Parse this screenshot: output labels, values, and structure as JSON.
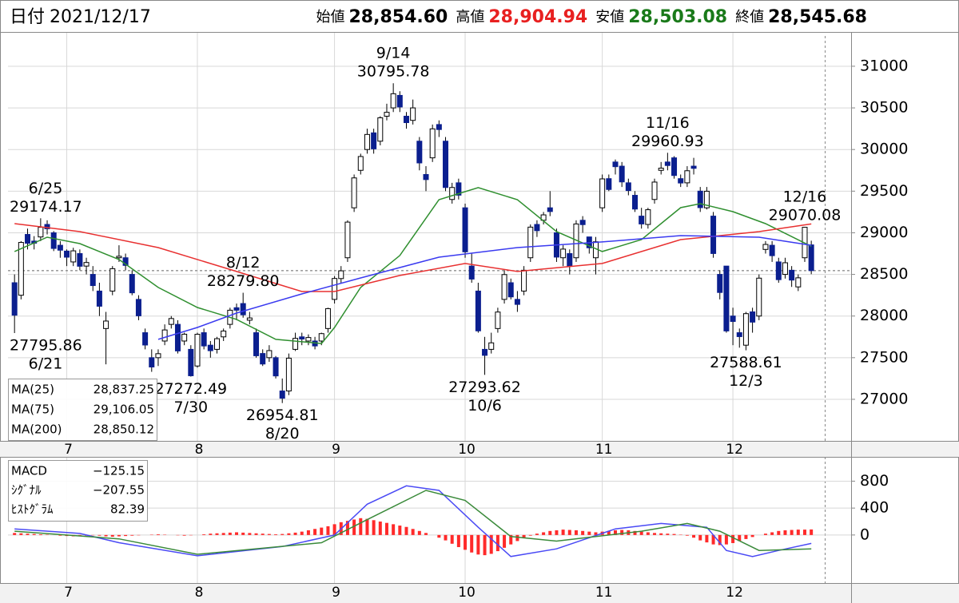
{
  "header": {
    "date_label": "日付",
    "date": "2021/12/17",
    "items": [
      {
        "label": "始値",
        "value": "28,854.60",
        "color": "#000000"
      },
      {
        "label": "高値",
        "value": "28,904.94",
        "color": "#e82020"
      },
      {
        "label": "安値",
        "value": "28,503.08",
        "color": "#1a7a1a"
      },
      {
        "label": "終値",
        "value": "28,545.68",
        "color": "#000000"
      }
    ]
  },
  "chart_data": {
    "type": "candlestick",
    "xlim": [
      -1,
      128.1
    ],
    "xticks": [
      {
        "value": 8,
        "label": "7"
      },
      {
        "value": 28,
        "label": "8"
      },
      {
        "value": 49,
        "label": "9"
      },
      {
        "value": 69,
        "label": "10"
      },
      {
        "value": 90,
        "label": "11"
      },
      {
        "value": 110,
        "label": "12"
      }
    ],
    "ylim": [
      26520,
      31364
    ],
    "yticks": [
      27000,
      27500,
      28000,
      28500,
      29000,
      29500,
      30000,
      30500,
      31000
    ],
    "grid": true,
    "up_color": "#ffffff",
    "down_color": "#0b1f8f",
    "candles": [
      [
        28400,
        28500,
        27795.86,
        28010
      ],
      [
        28250,
        28900,
        28200,
        28884
      ],
      [
        28980,
        29050,
        28800,
        28874
      ],
      [
        28900,
        28960,
        28800,
        28875
      ],
      [
        28950,
        29174.17,
        28900,
        29066
      ],
      [
        29100,
        29150,
        28980,
        29048
      ],
      [
        29000,
        29020,
        28780,
        28812
      ],
      [
        28850,
        28900,
        28700,
        28791
      ],
      [
        28780,
        28800,
        28600,
        28707
      ],
      [
        28650,
        28820,
        28600,
        28783
      ],
      [
        28750,
        28800,
        28550,
        28598
      ],
      [
        28600,
        28700,
        28500,
        28643
      ],
      [
        28500,
        28600,
        28300,
        28366
      ],
      [
        28300,
        28400,
        28000,
        28118
      ],
      [
        27850,
        28050,
        27420,
        27940
      ],
      [
        28300,
        28600,
        28250,
        28569
      ],
      [
        28700,
        28850,
        28650,
        28718
      ],
      [
        28700,
        28750,
        28550,
        28608
      ],
      [
        28500,
        28550,
        28250,
        28279
      ],
      [
        28200,
        28250,
        27950,
        28003
      ],
      [
        27800,
        27850,
        27600,
        27652
      ],
      [
        27500,
        27600,
        27330,
        27388
      ],
      [
        27500,
        27600,
        27400,
        27548
      ],
      [
        27700,
        27900,
        27650,
        27833
      ],
      [
        27900,
        28000,
        27850,
        27970
      ],
      [
        27900,
        27950,
        27550,
        27581
      ],
      [
        27700,
        27800,
        27650,
        27782
      ],
      [
        27600,
        27650,
        27272.49,
        27283
      ],
      [
        27400,
        27800,
        27380,
        27781
      ],
      [
        27800,
        27850,
        27600,
        27641
      ],
      [
        27650,
        27700,
        27500,
        27584
      ],
      [
        27600,
        27750,
        27550,
        27728
      ],
      [
        27750,
        27850,
        27700,
        27820
      ],
      [
        27900,
        28100,
        27850,
        28070
      ],
      [
        28100,
        28150,
        27950,
        28070
      ],
      [
        28150,
        28279.8,
        27980,
        28015
      ],
      [
        27950,
        28050,
        27900,
        27977
      ],
      [
        27800,
        27850,
        27500,
        27523
      ],
      [
        27550,
        27600,
        27400,
        27424
      ],
      [
        27500,
        27650,
        27450,
        27585
      ],
      [
        27500,
        27520,
        27250,
        27281
      ],
      [
        27100,
        27250,
        26954.81,
        27013
      ],
      [
        27100,
        27550,
        27050,
        27494
      ],
      [
        27600,
        27800,
        27580,
        27732
      ],
      [
        27750,
        27800,
        27650,
        27724
      ],
      [
        27700,
        27780,
        27650,
        27742
      ],
      [
        27700,
        27750,
        27600,
        27641
      ],
      [
        27700,
        27800,
        27650,
        27789
      ],
      [
        27850,
        28100,
        27800,
        28089
      ],
      [
        28200,
        28480,
        28150,
        28451
      ],
      [
        28450,
        28600,
        28400,
        28543
      ],
      [
        28700,
        29150,
        28650,
        29128
      ],
      [
        29300,
        29700,
        29250,
        29659
      ],
      [
        29750,
        29950,
        29700,
        29916
      ],
      [
        30000,
        30250,
        29950,
        30181
      ],
      [
        30200,
        30250,
        29950,
        30008
      ],
      [
        30100,
        30400,
        30050,
        30381
      ],
      [
        30400,
        30550,
        30350,
        30447
      ],
      [
        30500,
        30795.78,
        30450,
        30670
      ],
      [
        30650,
        30700,
        30450,
        30511
      ],
      [
        30400,
        30450,
        30250,
        30323
      ],
      [
        30350,
        30600,
        30300,
        30500
      ],
      [
        30100,
        30150,
        29750,
        29839
      ],
      [
        29700,
        29800,
        29500,
        29639
      ],
      [
        29900,
        30300,
        29850,
        30248
      ],
      [
        30300,
        30350,
        30150,
        30240
      ],
      [
        30100,
        30150,
        29500,
        29544
      ],
      [
        29400,
        29600,
        29350,
        29544
      ],
      [
        29600,
        29650,
        29400,
        29452
      ],
      [
        29300,
        29350,
        28700,
        28771
      ],
      [
        28600,
        28750,
        28400,
        28444
      ],
      [
        28300,
        28400,
        27800,
        27822
      ],
      [
        27600,
        27750,
        27293.62,
        27528
      ],
      [
        27600,
        27800,
        27550,
        27678
      ],
      [
        27850,
        28100,
        27800,
        28048
      ],
      [
        28200,
        28550,
        28150,
        28498
      ],
      [
        28400,
        28450,
        28200,
        28230
      ],
      [
        28200,
        28300,
        28050,
        28140
      ],
      [
        28300,
        28600,
        28250,
        28550
      ],
      [
        28700,
        29100,
        28650,
        29068
      ],
      [
        29100,
        29150,
        28950,
        29025
      ],
      [
        29150,
        29250,
        29100,
        29215
      ],
      [
        29300,
        29500,
        29200,
        29255
      ],
      [
        29000,
        29050,
        28650,
        28708
      ],
      [
        28700,
        28850,
        28600,
        28804
      ],
      [
        28750,
        28800,
        28500,
        28600
      ],
      [
        28700,
        29150,
        28650,
        29106
      ],
      [
        29150,
        29200,
        29000,
        29098
      ],
      [
        28950,
        28950,
        28750,
        28820
      ],
      [
        28700,
        28950,
        28500,
        28892
      ],
      [
        29300,
        29700,
        29250,
        29647
      ],
      [
        29650,
        29700,
        29500,
        29520
      ],
      [
        29850,
        29880,
        29700,
        29794
      ],
      [
        29800,
        29850,
        29550,
        29611
      ],
      [
        29600,
        29650,
        29450,
        29507
      ],
      [
        29450,
        29500,
        29250,
        29285
      ],
      [
        29200,
        29300,
        29050,
        29106
      ],
      [
        29100,
        29300,
        29050,
        29277
      ],
      [
        29400,
        29650,
        29350,
        29609
      ],
      [
        29750,
        29850,
        29700,
        29776
      ],
      [
        29850,
        29960.93,
        29750,
        29808
      ],
      [
        29900,
        29920,
        29650,
        29688
      ],
      [
        29650,
        29700,
        29550,
        29598
      ],
      [
        29600,
        29800,
        29550,
        29745
      ],
      [
        29800,
        29900,
        29700,
        29774
      ],
      [
        29500,
        29550,
        29250,
        29302
      ],
      [
        29300,
        29550,
        29280,
        29499
      ],
      [
        29200,
        29250,
        28700,
        28751
      ],
      [
        28500,
        28550,
        28200,
        28283
      ],
      [
        28600,
        28600,
        27800,
        27821
      ],
      [
        28000,
        28100,
        27650,
        27935
      ],
      [
        27800,
        27850,
        27620,
        27753
      ],
      [
        27650,
        28050,
        27588.61,
        28029
      ],
      [
        28050,
        28100,
        27800,
        27927
      ],
      [
        28000,
        28500,
        27950,
        28455
      ],
      [
        28800,
        28900,
        28750,
        28860
      ],
      [
        28850,
        28900,
        28650,
        28725
      ],
      [
        28650,
        28700,
        28400,
        28437
      ],
      [
        28500,
        28700,
        28450,
        28640
      ],
      [
        28550,
        28600,
        28350,
        28432
      ],
      [
        28350,
        28500,
        28300,
        28459
      ],
      [
        28700,
        29070.08,
        28650,
        29066
      ],
      [
        28854.6,
        28904.94,
        28503.08,
        28545.68
      ]
    ],
    "moving_averages": [
      {
        "name": "MA(25)",
        "color": "#2f8f2f",
        "last_label": "28,837.25",
        "x": [
          0,
          5,
          10,
          16,
          22,
          28,
          34,
          40,
          47,
          49,
          53,
          59,
          65,
          71,
          77,
          83,
          90,
          96,
          102,
          105,
          110,
          115,
          122
        ],
        "values": [
          28775,
          28947,
          28870,
          28679,
          28343,
          28103,
          27960,
          27720,
          27670,
          27863,
          28343,
          28727,
          29398,
          29542,
          29398,
          29014,
          28775,
          28918,
          29302,
          29350,
          29254,
          29110,
          28837.25
        ]
      },
      {
        "name": "MA(75)",
        "color": "#e83030",
        "last_label": "29,106.05",
        "x": [
          0,
          10,
          22,
          34,
          44,
          49,
          59,
          69,
          77,
          90,
          102,
          114,
          122
        ],
        "values": [
          29110,
          29014,
          28822,
          28535,
          28295,
          28295,
          28487,
          28631,
          28535,
          28631,
          28918,
          29014,
          29106.05
        ]
      },
      {
        "name": "MA(200)",
        "color": "#3a3af0",
        "last_label": "28,850.12",
        "x": [
          22,
          28,
          34,
          44,
          53,
          65,
          77,
          90,
          102,
          114,
          122
        ],
        "values": [
          27720,
          27863,
          28036,
          28266,
          28458,
          28707,
          28822,
          28890,
          28966,
          28947,
          28850.12
        ]
      }
    ],
    "annotations": [
      {
        "date": "6/25",
        "x": 4,
        "value": 29174.17,
        "label": "29174.17"
      },
      {
        "date": "6/21",
        "x": 0,
        "value": 27795.86,
        "label": "27795.86"
      },
      {
        "date": "7/30",
        "x": 27,
        "value": 27272.49,
        "label": "27272.49"
      },
      {
        "date": "8/12",
        "x": 35,
        "value": 28279.8,
        "label": "28279.80"
      },
      {
        "date": "8/20",
        "x": 41,
        "value": 26954.81,
        "label": "26954.81"
      },
      {
        "date": "9/14",
        "x": 58,
        "value": 30795.78,
        "label": "30795.78"
      },
      {
        "date": "10/6",
        "x": 72,
        "value": 27293.62,
        "label": "27293.62"
      },
      {
        "date": "11/16",
        "x": 100,
        "value": 29960.93,
        "label": "29960.93"
      },
      {
        "date": "12/3",
        "x": 112,
        "value": 27588.61,
        "label": "27588.61"
      },
      {
        "date": "12/16",
        "x": 121,
        "value": 29070.08,
        "label": "29070.08"
      }
    ],
    "macd": {
      "ylim": [
        -690,
        1090
      ],
      "yticks": [
        0,
        400,
        800
      ],
      "series": [
        {
          "name": "MACD",
          "color": "#4a4af5",
          "last_label": "−125.15",
          "x": [
            0,
            10,
            16,
            28,
            41,
            49,
            54,
            60,
            65,
            71,
            76,
            83,
            92,
            99,
            106,
            109,
            113,
            117,
            122
          ],
          "values": [
            91,
            23,
            -114,
            -309,
            -171,
            0,
            457,
            731,
            663,
            114,
            -320,
            -206,
            91,
            171,
            114,
            -229,
            -320,
            -229,
            -125.15
          ]
        },
        {
          "name": "ｼｸﾞﾅﾙ",
          "color": "#3a8a3a",
          "last_label": "−207.55",
          "x": [
            0,
            16,
            28,
            47,
            54,
            63,
            69,
            76,
            83,
            96,
            103,
            108,
            114,
            122
          ],
          "values": [
            57,
            -57,
            -286,
            -114,
            229,
            663,
            514,
            -23,
            -91,
            57,
            171,
            57,
            -229,
            -207.55
          ]
        }
      ],
      "histogram": {
        "name": "ﾋｽﾄｸﾞﾗﾑ",
        "color": "#ff2a2a",
        "last_label": "82.39",
        "values": [
          30,
          25,
          20,
          15,
          10,
          5,
          0,
          -10,
          -15,
          -20,
          -15,
          -10,
          -5,
          -10,
          -20,
          -25,
          -20,
          -15,
          -10,
          -5,
          0,
          5,
          10,
          5,
          0,
          -5,
          -10,
          -5,
          0,
          10,
          20,
          25,
          30,
          35,
          40,
          35,
          30,
          25,
          20,
          15,
          10,
          15,
          25,
          35,
          50,
          70,
          90,
          110,
          130,
          160,
          190,
          210,
          230,
          250,
          240,
          220,
          200,
          180,
          160,
          140,
          120,
          90,
          60,
          30,
          0,
          -40,
          -80,
          -130,
          -180,
          -220,
          -260,
          -290,
          -300,
          -280,
          -240,
          -190,
          -140,
          -90,
          -50,
          -10,
          20,
          40,
          60,
          70,
          80,
          75,
          70,
          60,
          50,
          40,
          50,
          60,
          70,
          75,
          70,
          60,
          50,
          40,
          30,
          25,
          20,
          15,
          5,
          -10,
          -40,
          -80,
          -110,
          -140,
          -150,
          -140,
          -120,
          -90,
          -60,
          -30,
          0,
          20,
          40,
          60,
          70,
          75,
          80,
          80,
          82.39
        ]
      }
    }
  }
}
